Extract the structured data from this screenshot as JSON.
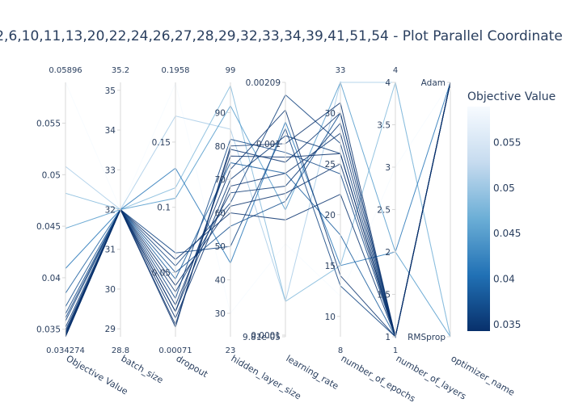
{
  "chart_data": {
    "type": "parallel_coordinates",
    "title": "2,6,10,11,13,20,22,24,26,27,28,29,32,33,34,39,41,51,54 - Plot Parallel Coordinate",
    "axes": [
      {
        "key": "objective",
        "label": "Objective Value",
        "range": [
          0.034274,
          0.05896
        ],
        "range_labels": [
          "0.034274",
          "0.05896"
        ],
        "ticks": [
          {
            "v": 0.035,
            "t": "0.035"
          },
          {
            "v": 0.04,
            "t": "0.04"
          },
          {
            "v": 0.045,
            "t": "0.045"
          },
          {
            "v": 0.05,
            "t": "0.05"
          },
          {
            "v": 0.055,
            "t": "0.055"
          }
        ]
      },
      {
        "key": "batch_size",
        "label": "batch_size",
        "range": [
          28.8,
          35.2
        ],
        "range_labels": [
          "28.8",
          "35.2"
        ],
        "ticks": [
          {
            "v": 29,
            "t": "29"
          },
          {
            "v": 30,
            "t": "30"
          },
          {
            "v": 31,
            "t": "31"
          },
          {
            "v": 32,
            "t": "32"
          },
          {
            "v": 33,
            "t": "33"
          },
          {
            "v": 34,
            "t": "34"
          },
          {
            "v": 35,
            "t": "35"
          }
        ]
      },
      {
        "key": "dropout",
        "label": "dropout",
        "range": [
          0.00071,
          0.1958
        ],
        "range_labels": [
          "0.00071",
          "0.1958"
        ],
        "ticks": [
          {
            "v": 0.05,
            "t": "0.05"
          },
          {
            "v": 0.1,
            "t": "0.1"
          },
          {
            "v": 0.15,
            "t": "0.15"
          }
        ]
      },
      {
        "key": "hidden_layer_size",
        "label": "hidden_layer_size",
        "range": [
          23,
          99
        ],
        "range_labels": [
          "23",
          "99"
        ],
        "ticks": [
          {
            "v": 30,
            "t": "30"
          },
          {
            "v": 40,
            "t": "40"
          },
          {
            "v": 50,
            "t": "50"
          },
          {
            "v": 60,
            "t": "60"
          },
          {
            "v": 70,
            "t": "70"
          },
          {
            "v": 80,
            "t": "80"
          },
          {
            "v": 90,
            "t": "90"
          }
        ]
      },
      {
        "key": "learning_rate",
        "label": "learning_rate",
        "scale": "log",
        "range": [
          9.81e-05,
          0.00209
        ],
        "range_labels": [],
        "ticks": [
          {
            "v": 9.81e-05,
            "t": "9.81e-05"
          },
          {
            "v": 0.0001,
            "t": "0.0001"
          },
          {
            "v": 0.001,
            "t": "0.001"
          },
          {
            "v": 0.00209,
            "t": "0.00209"
          }
        ]
      },
      {
        "key": "number_of_epochs",
        "label": "number_of_epochs",
        "range": [
          8,
          33
        ],
        "range_labels": [
          "8",
          "33"
        ],
        "ticks": [
          {
            "v": 10,
            "t": "10"
          },
          {
            "v": 15,
            "t": "15"
          },
          {
            "v": 20,
            "t": "20"
          },
          {
            "v": 25,
            "t": "25"
          },
          {
            "v": 30,
            "t": "30"
          }
        ]
      },
      {
        "key": "number_of_layers",
        "label": "number_of_layers",
        "range": [
          1,
          4
        ],
        "range_labels": [
          "1",
          "4"
        ],
        "ticks": [
          {
            "v": 1,
            "t": "1"
          },
          {
            "v": 1.5,
            "t": "1.5"
          },
          {
            "v": 2,
            "t": "2"
          },
          {
            "v": 2.5,
            "t": "2.5"
          },
          {
            "v": 3,
            "t": "3"
          },
          {
            "v": 3.5,
            "t": "3.5"
          },
          {
            "v": 4,
            "t": "4"
          }
        ]
      },
      {
        "key": "optimizer_name",
        "label": "optimizer_name",
        "range": [
          0,
          1
        ],
        "range_labels": [],
        "categorical": true,
        "ticks": [
          {
            "v": 0,
            "t": "RMSprop"
          },
          {
            "v": 1,
            "t": "Adam"
          }
        ]
      }
    ],
    "colorbar": {
      "title": "Objective Value",
      "colorscale": "Blues (reversed)",
      "range": [
        0.034274,
        0.05896
      ],
      "ticks": [
        {
          "v": 0.035,
          "t": "0.035"
        },
        {
          "v": 0.04,
          "t": "0.04"
        },
        {
          "v": 0.045,
          "t": "0.045"
        },
        {
          "v": 0.05,
          "t": "0.05"
        },
        {
          "v": 0.055,
          "t": "0.055"
        }
      ]
    },
    "trials": [
      {
        "objective": 0.05896,
        "batch_size": 32,
        "dropout": 0.195,
        "hidden_layer_size": 30,
        "learning_rate": 0.0003,
        "number_of_epochs": 12,
        "number_of_layers": 3,
        "optimizer_name": 1
      },
      {
        "objective": 0.0508,
        "batch_size": 32,
        "dropout": 0.17,
        "hidden_layer_size": 85,
        "learning_rate": 0.00015,
        "number_of_epochs": 33,
        "number_of_layers": 4,
        "optimizer_name": 0
      },
      {
        "objective": 0.0482,
        "batch_size": 32,
        "dropout": 0.115,
        "hidden_layer_size": 98,
        "learning_rate": 0.00015,
        "number_of_epochs": 15,
        "number_of_layers": 4,
        "optimizer_name": 0
      },
      {
        "objective": 0.0448,
        "batch_size": 32,
        "dropout": 0.107,
        "hidden_layer_size": 92,
        "learning_rate": 0.00045,
        "number_of_epochs": 33,
        "number_of_layers": 2,
        "optimizer_name": 0
      },
      {
        "objective": 0.0409,
        "batch_size": 32,
        "dropout": 0.13,
        "hidden_layer_size": 45,
        "learning_rate": 0.0013,
        "number_of_epochs": 15,
        "number_of_layers": 2,
        "optimizer_name": 1
      },
      {
        "objective": 0.0385,
        "batch_size": 32,
        "dropout": 0.045,
        "hidden_layer_size": 75,
        "learning_rate": 0.0007,
        "number_of_epochs": 18,
        "number_of_layers": 1,
        "optimizer_name": 1
      },
      {
        "objective": 0.0372,
        "batch_size": 32,
        "dropout": 0.05,
        "hidden_layer_size": 56,
        "learning_rate": 0.0005,
        "number_of_epochs": 30,
        "number_of_layers": 1,
        "optimizer_name": 1
      },
      {
        "objective": 0.0365,
        "batch_size": 32,
        "dropout": 0.03,
        "hidden_layer_size": 82,
        "learning_rate": 0.0009,
        "number_of_epochs": 24,
        "number_of_layers": 1,
        "optimizer_name": 1
      },
      {
        "objective": 0.0358,
        "batch_size": 32,
        "dropout": 0.055,
        "hidden_layer_size": 63,
        "learning_rate": 0.0018,
        "number_of_epochs": 27,
        "number_of_layers": 1,
        "optimizer_name": 1
      },
      {
        "objective": 0.0352,
        "batch_size": 32,
        "dropout": 0.02,
        "hidden_layer_size": 70,
        "learning_rate": 0.0011,
        "number_of_epochs": 26,
        "number_of_layers": 1,
        "optimizer_name": 1
      },
      {
        "objective": 0.0349,
        "batch_size": 32,
        "dropout": 0.035,
        "hidden_layer_size": 66,
        "learning_rate": 0.0006,
        "number_of_epochs": 29,
        "number_of_layers": 1,
        "optimizer_name": 1
      },
      {
        "objective": 0.0347,
        "batch_size": 32,
        "dropout": 0.01,
        "hidden_layer_size": 79,
        "learning_rate": 0.0008,
        "number_of_epochs": 30,
        "number_of_layers": 1,
        "optimizer_name": 1
      },
      {
        "objective": 0.0346,
        "batch_size": 32,
        "dropout": 0.06,
        "hidden_layer_size": 60,
        "learning_rate": 0.0004,
        "number_of_epochs": 22,
        "number_of_layers": 1,
        "optimizer_name": 1
      },
      {
        "objective": 0.0345,
        "batch_size": 32,
        "dropout": 0.025,
        "hidden_layer_size": 73,
        "learning_rate": 0.0015,
        "number_of_epochs": 14,
        "number_of_layers": 1,
        "optimizer_name": 1
      },
      {
        "objective": 0.0344,
        "batch_size": 32,
        "dropout": 0.015,
        "hidden_layer_size": 68,
        "learning_rate": 0.0007,
        "number_of_epochs": 28,
        "number_of_layers": 1,
        "optimizer_name": 1
      },
      {
        "objective": 0.0343,
        "batch_size": 32,
        "dropout": 0.04,
        "hidden_layer_size": 62,
        "learning_rate": 0.00055,
        "number_of_epochs": 25,
        "number_of_layers": 1,
        "optimizer_name": 1
      },
      {
        "objective": 0.03428,
        "batch_size": 32,
        "dropout": 0.008,
        "hidden_layer_size": 80,
        "learning_rate": 0.001,
        "number_of_epochs": 31,
        "number_of_layers": 1,
        "optimizer_name": 1
      },
      {
        "objective": 0.034274,
        "batch_size": 32,
        "dropout": 0.02,
        "hidden_layer_size": 77,
        "learning_rate": 0.00085,
        "number_of_epochs": 26,
        "number_of_layers": 1,
        "optimizer_name": 1
      },
      {
        "objective": 0.0361,
        "batch_size": 32,
        "dropout": 0.065,
        "hidden_layer_size": 50,
        "learning_rate": 0.0012,
        "number_of_epochs": 13,
        "number_of_layers": 1,
        "optimizer_name": 1
      }
    ]
  }
}
